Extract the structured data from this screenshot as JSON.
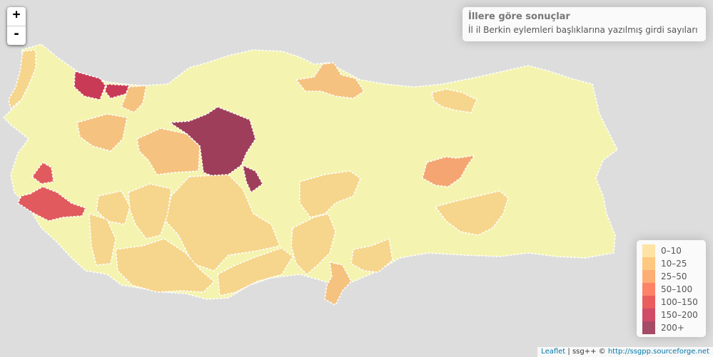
{
  "zoom": {
    "in_label": "+",
    "out_label": "-"
  },
  "info": {
    "title": "İllere göre sonuçlar",
    "subtitle": "İl il Berkin eylemleri başlıklarına yazılmış girdi sayıları"
  },
  "legend": [
    {
      "label": "0–10",
      "color": "#ffd97f"
    },
    {
      "label": "10–25",
      "color": "#feb24c"
    },
    {
      "label": "25–50",
      "color": "#fd8d3c"
    },
    {
      "label": "50–100",
      "color": "#fc4e2a"
    },
    {
      "label": "100–150",
      "color": "#e31a1c"
    },
    {
      "label": "150–200",
      "color": "#bd0026"
    },
    {
      "label": "200+",
      "color": "#800026"
    }
  ],
  "attribution": {
    "leaflet": "Leaflet",
    "sep": " | ssg++ © ",
    "link": "http://ssgpp.sourceforge.net"
  },
  "colors": {
    "no_data": "#f4f4b0",
    "c0_10": "#f6d58c",
    "c10_25": "#f5c27f",
    "c25_50": "#f4a571",
    "c100_150": "#e15a5d",
    "c150_200": "#c93a56",
    "c200_plus": "#9e3e5a"
  }
}
